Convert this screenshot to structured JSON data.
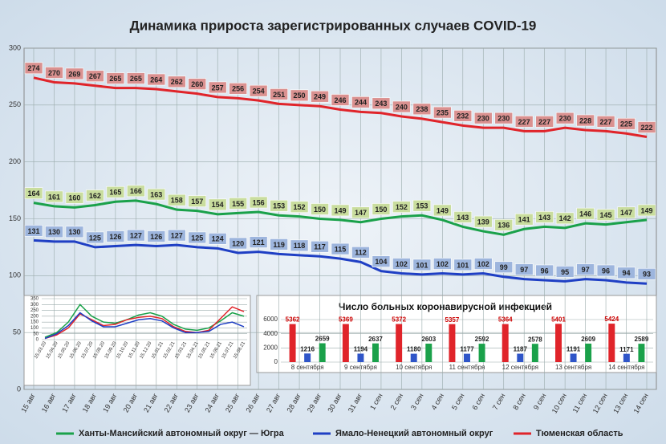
{
  "chart_data": [
    {
      "type": "line",
      "title": "Динамика прироста зарегистрированных случаев COVID-19",
      "categories": [
        "15 авг",
        "16 авг",
        "17 авг",
        "18 авг",
        "19 авг",
        "20 авг",
        "21 авг",
        "22 авг",
        "23 авг",
        "24 авг",
        "25 авг",
        "26 авг",
        "27 авг",
        "28 авг",
        "29 авг",
        "30 авг",
        "31 авг",
        "1 сен",
        "2 сен",
        "3 сен",
        "4 сен",
        "5 сен",
        "6 сен",
        "7 сен",
        "8 сен",
        "9 сен",
        "10 сен",
        "11 сен",
        "12 сен",
        "13 сен",
        "14 сен"
      ],
      "series": [
        {
          "name": "Ханты-Мансийский автономный округ — Югра",
          "color": "#1aa14a",
          "label_color": "#c9dd9e",
          "values": [
            164,
            161,
            160,
            162,
            165,
            166,
            163,
            158,
            157,
            154,
            155,
            156,
            153,
            152,
            150,
            149,
            147,
            150,
            152,
            153,
            149,
            143,
            139,
            136,
            141,
            143,
            142,
            146,
            145,
            147,
            149
          ]
        },
        {
          "name": "Ямало-Ненецкий автономный округ",
          "color": "#1f3fc4",
          "label_color": "#9db5dd",
          "values": [
            131,
            130,
            130,
            125,
            126,
            127,
            126,
            127,
            125,
            124,
            120,
            121,
            119,
            118,
            117,
            115,
            112,
            104,
            102,
            101,
            102,
            101,
            102,
            99,
            97,
            96,
            95,
            97,
            96,
            94,
            93
          ]
        },
        {
          "name": "Тюменская область",
          "color": "#e0242a",
          "label_color": "#da9190",
          "values": [
            274,
            270,
            269,
            267,
            265,
            265,
            264,
            262,
            260,
            257,
            256,
            254,
            251,
            250,
            249,
            246,
            244,
            243,
            240,
            238,
            235,
            232,
            230,
            230,
            227,
            227,
            230,
            228,
            227,
            225,
            222
          ]
        }
      ],
      "ylim": [
        0,
        300
      ],
      "yticks": [
        0,
        50,
        100,
        150,
        200,
        250,
        300
      ],
      "grid": true,
      "legend": "bottom"
    },
    {
      "type": "line",
      "categories": [
        "15.03.20",
        "15.04.20",
        "15.05.20",
        "15.06.20",
        "15.07.20",
        "15.08.20",
        "15.09.20",
        "15.10.20",
        "15.11.20",
        "15.12.20",
        "15.01.21",
        "15.02.21",
        "15.03.21",
        "15.04.21",
        "15.05.21",
        "15.06.21",
        "15.07.21",
        "15.08.21"
      ],
      "series": [
        {
          "color": "#1aa14a",
          "values": [
            20,
            60,
            150,
            300,
            200,
            150,
            140,
            170,
            210,
            230,
            200,
            130,
            90,
            80,
            100,
            160,
            230,
            200
          ]
        },
        {
          "color": "#e0242a",
          "values": [
            10,
            40,
            100,
            220,
            170,
            120,
            130,
            170,
            190,
            200,
            180,
            110,
            70,
            60,
            80,
            180,
            280,
            240
          ]
        },
        {
          "color": "#1f3fc4",
          "values": [
            10,
            50,
            120,
            230,
            160,
            110,
            110,
            140,
            170,
            180,
            160,
            100,
            60,
            60,
            70,
            130,
            150,
            110
          ]
        }
      ],
      "ylim": [
        0,
        350
      ],
      "yticks": [
        0,
        50,
        100,
        150,
        200,
        250,
        300,
        350
      ],
      "grid": true
    },
    {
      "type": "bar",
      "title": "Число больных коронавирусной инфекцией",
      "categories": [
        "8 сентября",
        "9 сентября",
        "10 сентября",
        "11 сентября",
        "12 сентября",
        "13 сентября",
        "14 сентября"
      ],
      "series": [
        {
          "color": "#e0242a",
          "values": [
            5362,
            5369,
            5372,
            5357,
            5364,
            5401,
            5424
          ]
        },
        {
          "color": "#2f55c8",
          "values": [
            1216,
            1194,
            1180,
            1177,
            1187,
            1191,
            1171
          ]
        },
        {
          "color": "#1aa14a",
          "values": [
            2659,
            2637,
            2603,
            2592,
            2578,
            2609,
            2589
          ]
        }
      ],
      "ylim": [
        0,
        6000
      ],
      "yticks": [
        0,
        2000,
        4000,
        6000
      ],
      "grid": true
    }
  ]
}
